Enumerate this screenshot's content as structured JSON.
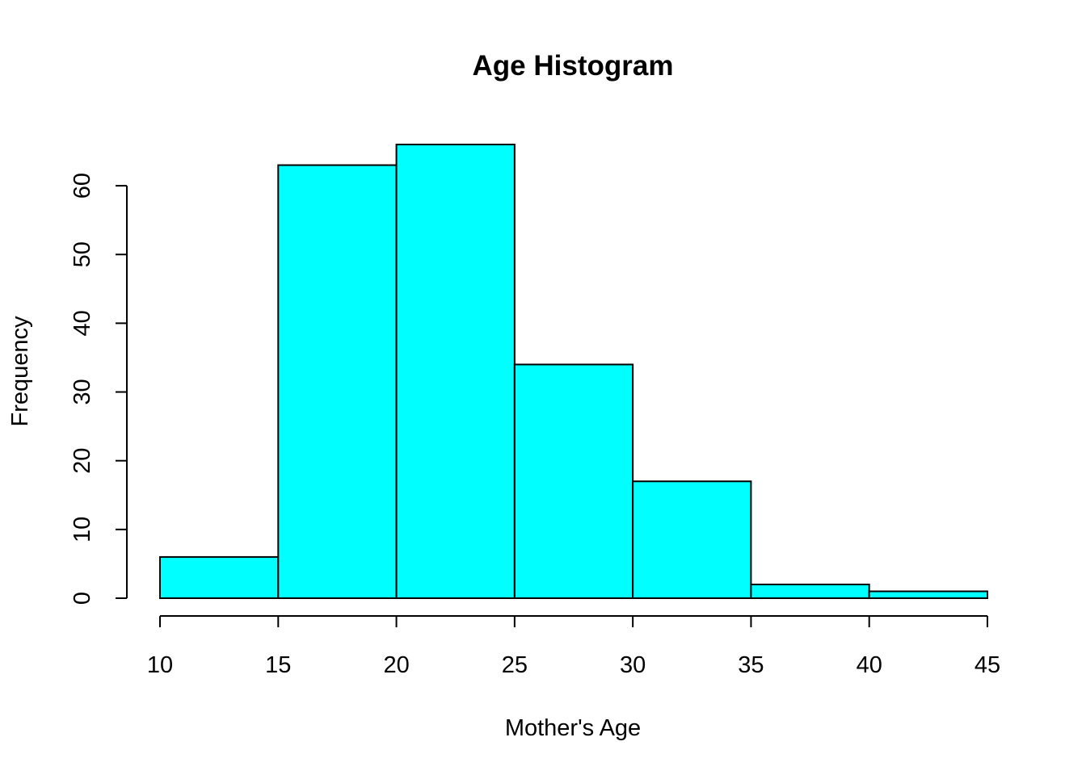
{
  "chart_data": {
    "type": "bar",
    "title": "Age Histogram",
    "xlabel": "Mother's Age",
    "ylabel": "Frequency",
    "bins": [
      [
        10,
        15
      ],
      [
        15,
        20
      ],
      [
        20,
        25
      ],
      [
        25,
        30
      ],
      [
        30,
        35
      ],
      [
        35,
        40
      ],
      [
        40,
        45
      ]
    ],
    "values": [
      6,
      63,
      66,
      34,
      17,
      2,
      1
    ],
    "x_ticks": [
      10,
      15,
      20,
      25,
      30,
      35,
      40,
      45
    ],
    "y_ticks": [
      0,
      10,
      20,
      30,
      40,
      50,
      60
    ],
    "xlim": [
      10,
      45
    ],
    "ylim": [
      0,
      66
    ],
    "grid": false,
    "bar_color": "#00FFFF",
    "edge_color": "#000000"
  }
}
